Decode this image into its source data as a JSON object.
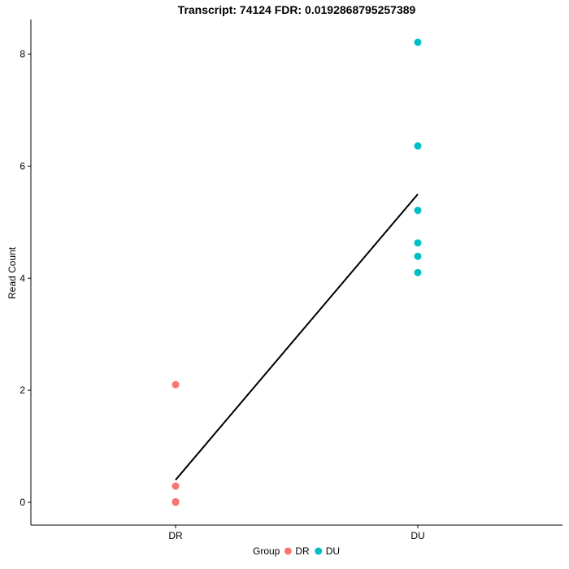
{
  "chart_data": {
    "type": "scatter",
    "title": "Transcript: 74124  FDR:  0.0192868795257389",
    "xlabel": "",
    "ylabel": "Read Count",
    "categories": [
      "DR",
      "DU"
    ],
    "y_ticks": [
      0,
      2,
      4,
      6,
      8
    ],
    "ylim": [
      -0.4,
      8.65
    ],
    "grid": false,
    "series": [
      {
        "name": "DR",
        "category": "DR",
        "color": "#F8766D",
        "values": [
          2.1,
          0.29,
          0.01,
          0.0
        ]
      },
      {
        "name": "DU",
        "category": "DU",
        "color": "#00BFC4",
        "values": [
          8.21,
          6.36,
          5.21,
          4.63,
          4.39,
          4.1
        ]
      }
    ],
    "trend_line": {
      "color": "#000000",
      "points": [
        {
          "x": "DR",
          "y": 0.4
        },
        {
          "x": "DU",
          "y": 5.5
        }
      ]
    },
    "legend": {
      "title": "Group",
      "position": "bottom",
      "entries": [
        {
          "label": "DR",
          "color": "#F8766D"
        },
        {
          "label": "DU",
          "color": "#00BFC4"
        }
      ]
    }
  }
}
